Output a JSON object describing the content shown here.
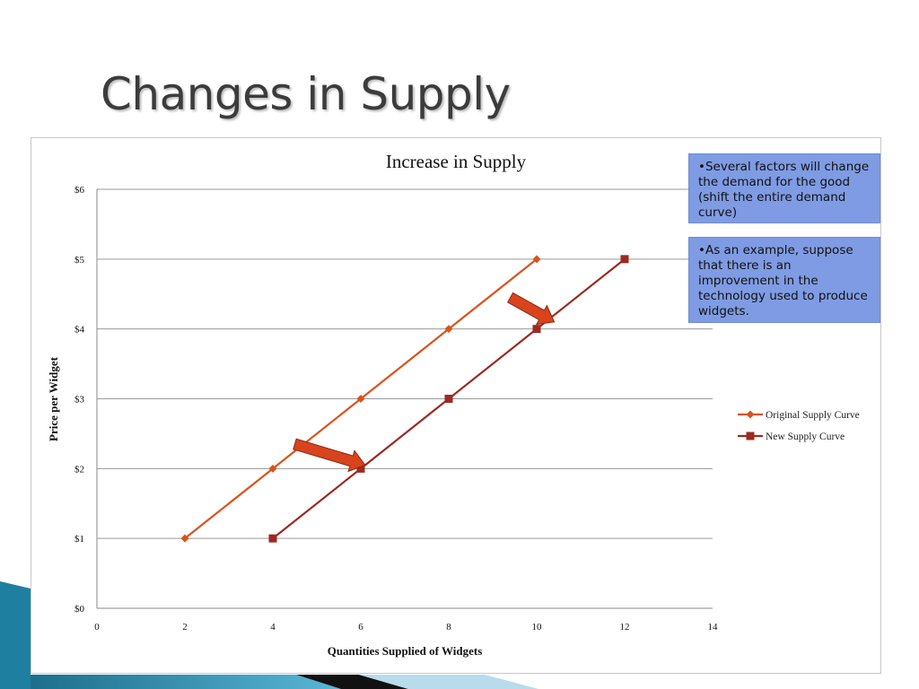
{
  "slide": {
    "title": "Changes in Supply"
  },
  "notes": [
    "•Several factors will change the demand for the good (shift the entire demand curve)",
    "•As an example, suppose that there is an improvement in the technology used to produce widgets."
  ],
  "colors": {
    "original_series": "#d9531e",
    "new_series": "#9b2a22",
    "arrow": "#d9431e",
    "note_box": "#7f9be3",
    "gridline": "#9a9a9a"
  },
  "chart_data": {
    "type": "line",
    "title": "Increase in Supply",
    "xlabel": "Quantities Supplied of Widgets",
    "ylabel": "Price per Widget",
    "xlim": [
      0,
      14
    ],
    "ylim": [
      0,
      6
    ],
    "x_ticks": [
      "0",
      "2",
      "4",
      "6",
      "8",
      "10",
      "12",
      "14"
    ],
    "y_ticks": [
      "$0",
      "$1",
      "$2",
      "$3",
      "$4",
      "$5",
      "$6"
    ],
    "grid": "horizontal",
    "legend_position": "right",
    "series": [
      {
        "name": "Original Supply Curve",
        "marker": "diamond",
        "points": [
          [
            2,
            1
          ],
          [
            4,
            2
          ],
          [
            6,
            3
          ],
          [
            8,
            4
          ],
          [
            10,
            5
          ]
        ]
      },
      {
        "name": "New Supply Curve",
        "marker": "square",
        "points": [
          [
            4,
            1
          ],
          [
            6,
            2
          ],
          [
            8,
            3
          ],
          [
            10,
            4
          ],
          [
            12,
            5
          ]
        ]
      }
    ],
    "annotations": [
      {
        "type": "arrow",
        "direction": "right",
        "from": [
          4.5,
          2.35
        ],
        "to": [
          6.1,
          2.05
        ]
      },
      {
        "type": "arrow",
        "direction": "right",
        "from": [
          9.4,
          4.45
        ],
        "to": [
          10.4,
          4.1
        ]
      }
    ]
  }
}
